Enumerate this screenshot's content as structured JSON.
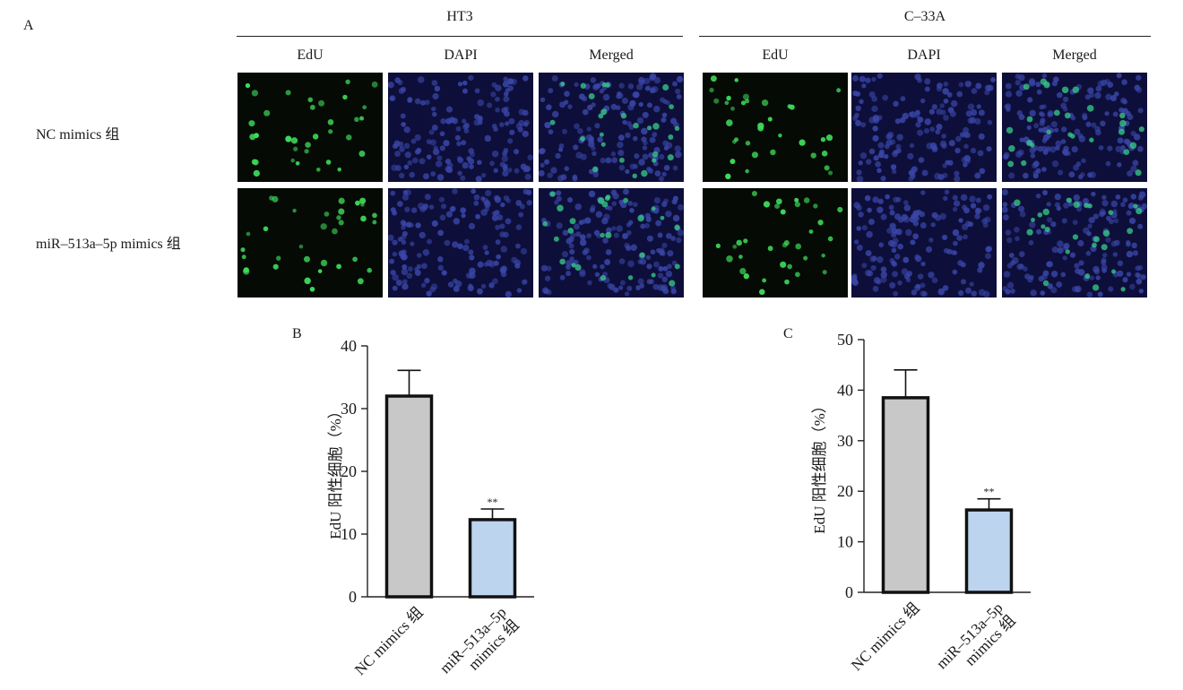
{
  "panels": {
    "a": {
      "letter": "A",
      "cell_lines": [
        "HT3",
        "C–33A"
      ],
      "stains": [
        "EdU",
        "DAPI",
        "Merged"
      ],
      "groups": [
        "NC mimics 组",
        "miR–513a–5p mimics 组"
      ],
      "image_colors": {
        "edu_bg": "#050a05",
        "edu_cell": "#3fdc5a",
        "dapi_bg": "#0d0f3a",
        "dapi_cell": "#3a46a8",
        "merged_bg": "#0d0f3a",
        "merged_cell": "#3a46a8",
        "merged_green": "#38d08a"
      }
    },
    "b": {
      "letter": "B"
    },
    "c": {
      "letter": "C"
    }
  },
  "chart_data": [
    {
      "type": "bar",
      "ylabel": "EdU 阳性细胞（%）",
      "categories": [
        "NC mimics 组",
        "miR–513a–5p mimics 组"
      ],
      "category_lines": [
        [
          "NC mimics 组"
        ],
        [
          "miR–513a–5p",
          "mimics 组"
        ]
      ],
      "values": [
        32,
        12.3
      ],
      "errors": [
        4.1,
        1.7
      ],
      "significance": [
        "",
        "**"
      ],
      "colors": [
        "#c8c8c8",
        "#bcd4ee"
      ],
      "ylim": [
        0,
        40
      ],
      "yticks": [
        0,
        10,
        20,
        30,
        40
      ]
    },
    {
      "type": "bar",
      "ylabel": "EdU 阳性细胞（%）",
      "categories": [
        "NC mimics 组",
        "miR–513a–5p mimics 组"
      ],
      "category_lines": [
        [
          "NC mimics 组"
        ],
        [
          "miR–513a–5p",
          "mimics 组"
        ]
      ],
      "values": [
        38.5,
        16.3
      ],
      "errors": [
        5.5,
        2.2
      ],
      "significance": [
        "",
        "**"
      ],
      "colors": [
        "#c8c8c8",
        "#bcd4ee"
      ],
      "ylim": [
        0,
        50
      ],
      "yticks": [
        0,
        10,
        20,
        30,
        40,
        50
      ]
    }
  ]
}
